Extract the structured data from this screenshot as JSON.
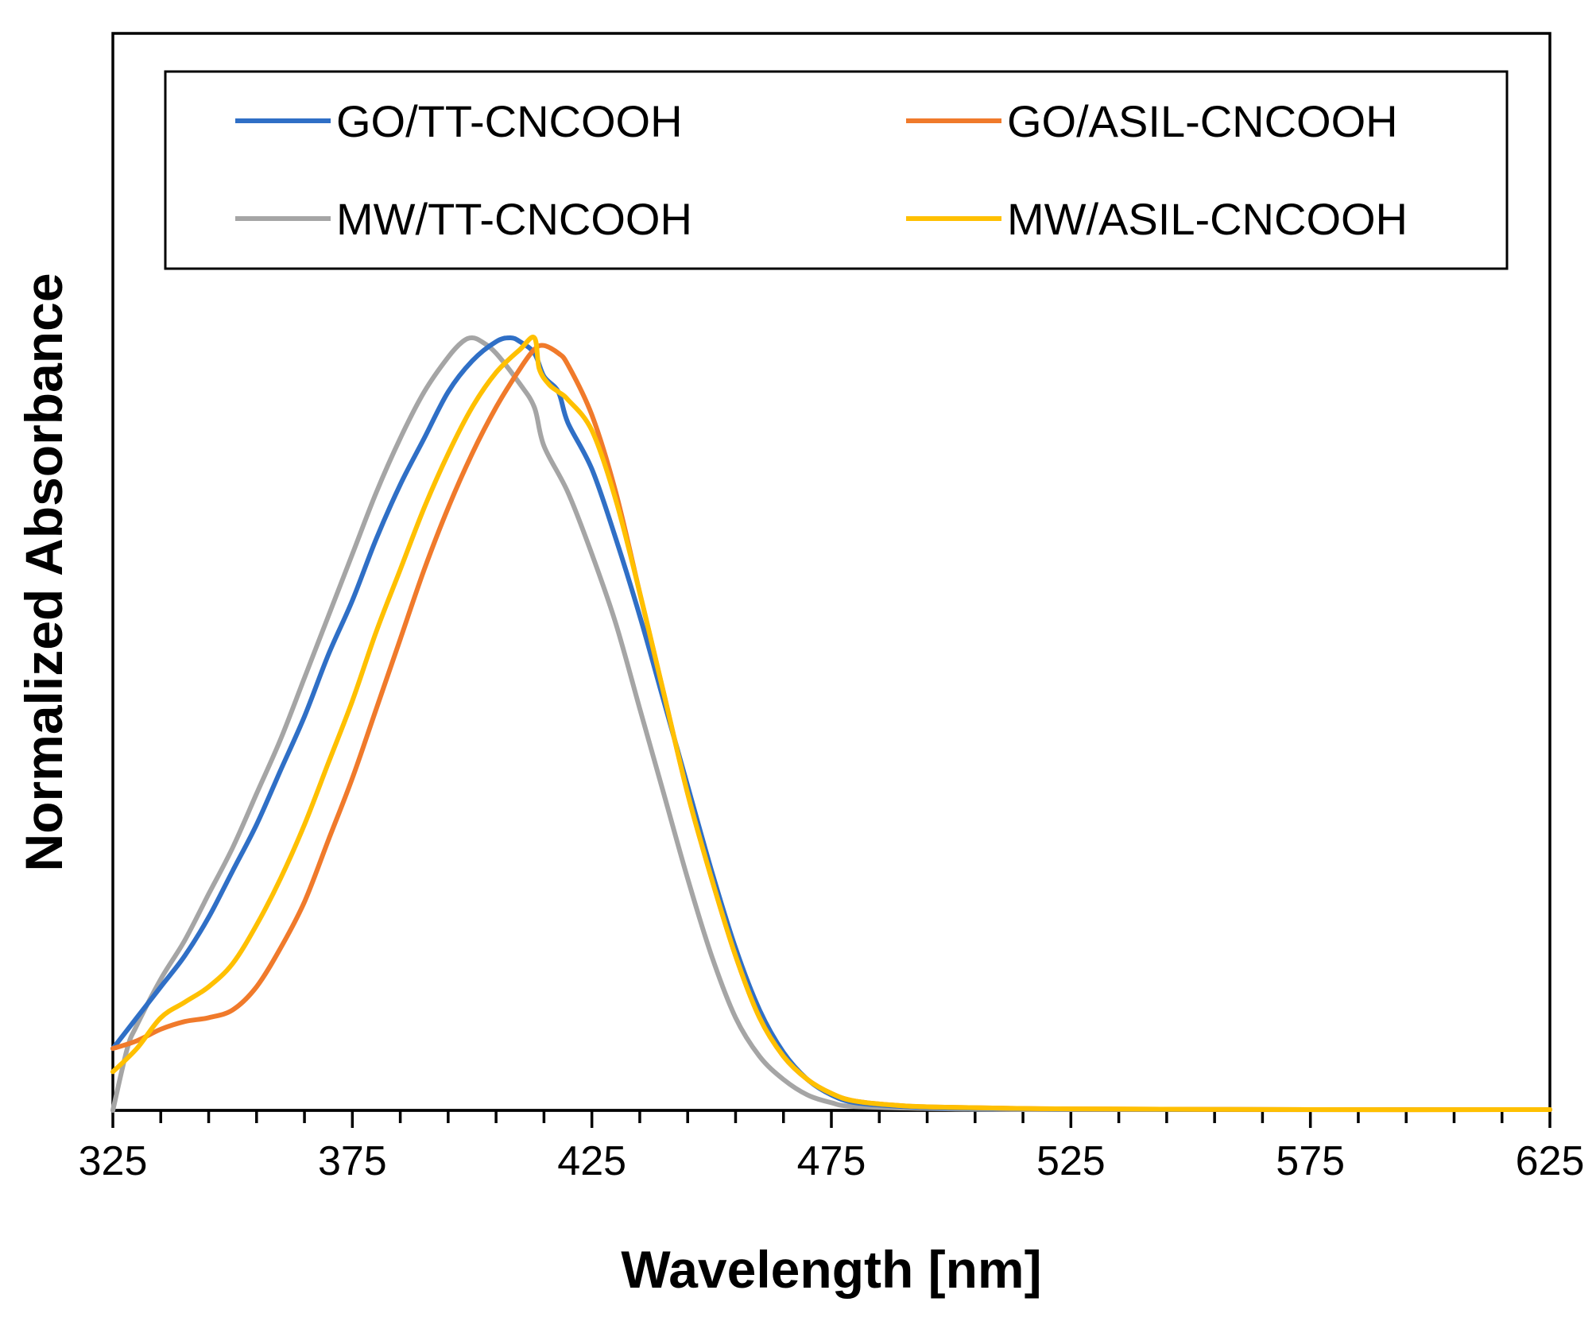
{
  "chart_data": {
    "type": "line",
    "title": "",
    "xlabel": "Wavelength [nm]",
    "ylabel": "Normalized Absorbance",
    "xlim": [
      325,
      625
    ],
    "ylim": [
      0,
      1
    ],
    "x_ticks": [
      325,
      375,
      425,
      475,
      525,
      575,
      625
    ],
    "x_tick_labels": [
      "325",
      "375",
      "425",
      "475",
      "525",
      "575",
      "625"
    ],
    "x_minor_step": 10,
    "y_ticks_shown": false,
    "legend_position": "top",
    "series": [
      {
        "name": "GO/TT-CNCOOH",
        "color": "#2F6FC6",
        "points": [
          [
            325,
            0.08
          ],
          [
            330,
            0.12
          ],
          [
            335,
            0.16
          ],
          [
            340,
            0.2
          ],
          [
            345,
            0.25
          ],
          [
            350,
            0.31
          ],
          [
            355,
            0.37
          ],
          [
            360,
            0.44
          ],
          [
            365,
            0.51
          ],
          [
            370,
            0.59
          ],
          [
            375,
            0.66
          ],
          [
            380,
            0.74
          ],
          [
            385,
            0.81
          ],
          [
            390,
            0.87
          ],
          [
            395,
            0.93
          ],
          [
            400,
            0.97
          ],
          [
            405,
            0.995
          ],
          [
            408,
            1.0
          ],
          [
            410,
            0.995
          ],
          [
            413,
            0.98
          ],
          [
            415,
            0.95
          ],
          [
            418,
            0.93
          ],
          [
            420,
            0.89
          ],
          [
            425,
            0.83
          ],
          [
            430,
            0.74
          ],
          [
            435,
            0.64
          ],
          [
            440,
            0.53
          ],
          [
            445,
            0.42
          ],
          [
            450,
            0.31
          ],
          [
            455,
            0.21
          ],
          [
            460,
            0.13
          ],
          [
            465,
            0.075
          ],
          [
            470,
            0.04
          ],
          [
            475,
            0.02
          ],
          [
            480,
            0.01
          ],
          [
            490,
            0.005
          ],
          [
            500,
            0.003
          ],
          [
            525,
            0.0015
          ],
          [
            575,
            0.001
          ],
          [
            625,
            0.001
          ]
        ]
      },
      {
        "name": "GO/ASIL-CNCOOH",
        "color": "#F07A2B",
        "points": [
          [
            325,
            0.08
          ],
          [
            330,
            0.09
          ],
          [
            335,
            0.105
          ],
          [
            340,
            0.115
          ],
          [
            345,
            0.12
          ],
          [
            350,
            0.13
          ],
          [
            355,
            0.16
          ],
          [
            360,
            0.21
          ],
          [
            365,
            0.27
          ],
          [
            370,
            0.35
          ],
          [
            375,
            0.43
          ],
          [
            380,
            0.52
          ],
          [
            385,
            0.61
          ],
          [
            390,
            0.7
          ],
          [
            395,
            0.78
          ],
          [
            400,
            0.85
          ],
          [
            405,
            0.91
          ],
          [
            410,
            0.96
          ],
          [
            413,
            0.985
          ],
          [
            415,
            0.99
          ],
          [
            418,
            0.98
          ],
          [
            420,
            0.965
          ],
          [
            425,
            0.9
          ],
          [
            430,
            0.8
          ],
          [
            435,
            0.67
          ],
          [
            440,
            0.54
          ],
          [
            445,
            0.41
          ],
          [
            450,
            0.3
          ],
          [
            455,
            0.2
          ],
          [
            460,
            0.12
          ],
          [
            465,
            0.07
          ],
          [
            470,
            0.04
          ],
          [
            475,
            0.022
          ],
          [
            480,
            0.012
          ],
          [
            490,
            0.006
          ],
          [
            500,
            0.004
          ],
          [
            525,
            0.002
          ],
          [
            575,
            0.001
          ],
          [
            625,
            0.001
          ]
        ]
      },
      {
        "name": "MW/TT-CNCOOH",
        "color": "#A5A5A5",
        "points": [
          [
            325,
            0.0
          ],
          [
            328,
            0.08
          ],
          [
            330,
            0.11
          ],
          [
            335,
            0.17
          ],
          [
            340,
            0.22
          ],
          [
            345,
            0.28
          ],
          [
            350,
            0.34
          ],
          [
            355,
            0.41
          ],
          [
            360,
            0.48
          ],
          [
            365,
            0.56
          ],
          [
            370,
            0.64
          ],
          [
            375,
            0.72
          ],
          [
            380,
            0.8
          ],
          [
            385,
            0.87
          ],
          [
            390,
            0.93
          ],
          [
            395,
            0.975
          ],
          [
            398,
            0.995
          ],
          [
            400,
            1.0
          ],
          [
            402,
            0.995
          ],
          [
            405,
            0.98
          ],
          [
            410,
            0.94
          ],
          [
            413,
            0.91
          ],
          [
            415,
            0.86
          ],
          [
            420,
            0.8
          ],
          [
            425,
            0.72
          ],
          [
            430,
            0.63
          ],
          [
            435,
            0.52
          ],
          [
            440,
            0.41
          ],
          [
            445,
            0.3
          ],
          [
            450,
            0.2
          ],
          [
            455,
            0.12
          ],
          [
            460,
            0.07
          ],
          [
            465,
            0.04
          ],
          [
            470,
            0.02
          ],
          [
            475,
            0.01
          ],
          [
            480,
            0.005
          ],
          [
            500,
            0.002
          ],
          [
            525,
            0.001
          ],
          [
            625,
            0.001
          ]
        ]
      },
      {
        "name": "MW/ASIL-CNCOOH",
        "color": "#FFC000",
        "points": [
          [
            325,
            0.05
          ],
          [
            330,
            0.08
          ],
          [
            335,
            0.12
          ],
          [
            340,
            0.14
          ],
          [
            345,
            0.16
          ],
          [
            350,
            0.19
          ],
          [
            355,
            0.24
          ],
          [
            360,
            0.3
          ],
          [
            365,
            0.37
          ],
          [
            370,
            0.45
          ],
          [
            375,
            0.53
          ],
          [
            380,
            0.62
          ],
          [
            385,
            0.7
          ],
          [
            390,
            0.78
          ],
          [
            395,
            0.85
          ],
          [
            400,
            0.91
          ],
          [
            405,
            0.955
          ],
          [
            410,
            0.985
          ],
          [
            413,
            1.0
          ],
          [
            414,
            0.96
          ],
          [
            416,
            0.94
          ],
          [
            418,
            0.93
          ],
          [
            420,
            0.92
          ],
          [
            425,
            0.88
          ],
          [
            430,
            0.79
          ],
          [
            435,
            0.67
          ],
          [
            440,
            0.54
          ],
          [
            445,
            0.41
          ],
          [
            450,
            0.3
          ],
          [
            455,
            0.2
          ],
          [
            460,
            0.12
          ],
          [
            465,
            0.07
          ],
          [
            470,
            0.04
          ],
          [
            475,
            0.022
          ],
          [
            480,
            0.012
          ],
          [
            490,
            0.006
          ],
          [
            500,
            0.004
          ],
          [
            525,
            0.002
          ],
          [
            575,
            0.001
          ],
          [
            625,
            0.001
          ]
        ]
      }
    ]
  }
}
